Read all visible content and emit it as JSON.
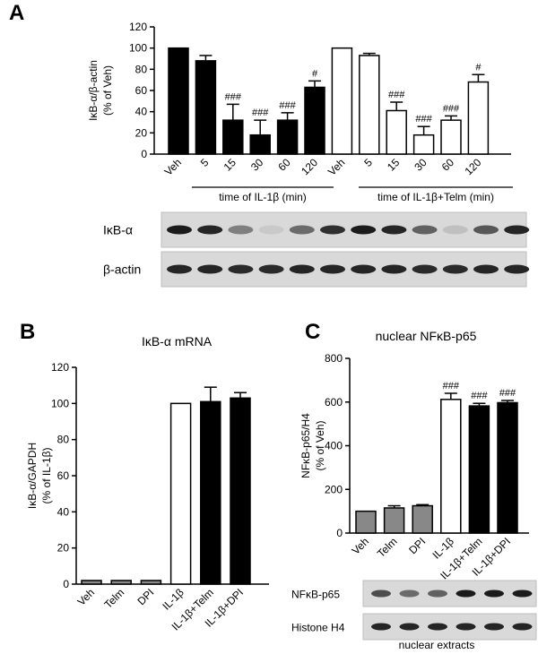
{
  "panels": {
    "a": "A",
    "b": "B",
    "c": "C"
  },
  "chart_data": [
    {
      "id": "A",
      "type": "bar",
      "ylabel_line1": "IκB-α/β-actin",
      "ylabel_line2": "(% of Veh)",
      "ylim": [
        0,
        120
      ],
      "yticks": [
        0,
        20,
        40,
        60,
        80,
        100,
        120
      ],
      "categories": [
        "Veh",
        "5",
        "15",
        "30",
        "60",
        "120",
        "Veh",
        "5",
        "15",
        "30",
        "60",
        "120"
      ],
      "values": [
        100,
        88,
        32,
        18,
        32,
        63,
        100,
        93,
        41,
        18,
        32,
        68
      ],
      "errors": [
        0,
        5,
        15,
        14,
        7,
        6,
        0,
        2,
        8,
        8,
        4,
        7
      ],
      "fills": [
        "#000000",
        "#000000",
        "#000000",
        "#000000",
        "#000000",
        "#000000",
        "#ffffff",
        "#ffffff",
        "#ffffff",
        "#ffffff",
        "#ffffff",
        "#ffffff"
      ],
      "significance": [
        "",
        "",
        "###",
        "###",
        "###",
        "#",
        "",
        "",
        "###",
        "###",
        "###",
        "#"
      ],
      "group_labels": [
        "time of IL-1β (min)",
        "time of IL-1β+Telm (min)"
      ],
      "blot": {
        "rows": [
          "IκB-α",
          "β-actin"
        ]
      }
    },
    {
      "id": "B",
      "type": "bar",
      "title": "IκB-α mRNA",
      "ylabel_line1": "IκB-α/GAPDH",
      "ylabel_line2": "(% of IL-1β)",
      "ylim": [
        0,
        120
      ],
      "yticks": [
        0,
        20,
        40,
        60,
        80,
        100,
        120
      ],
      "categories": [
        "Veh",
        "Telm",
        "DPI",
        "IL-1β",
        "IL-1β+Telm",
        "IL-1β+DPI"
      ],
      "values": [
        2,
        2,
        2,
        100,
        101,
        103
      ],
      "errors": [
        0,
        0,
        0,
        0,
        8,
        3
      ],
      "fills": [
        "#888888",
        "#888888",
        "#888888",
        "#ffffff",
        "#000000",
        "#000000"
      ]
    },
    {
      "id": "C",
      "type": "bar",
      "title": "nuclear NFκB-p65",
      "ylabel_line1": "NFκB-p65/H4",
      "ylabel_line2": "(% of Veh)",
      "ylim": [
        0,
        800
      ],
      "yticks": [
        0,
        200,
        400,
        600,
        800
      ],
      "categories": [
        "Veh",
        "Telm",
        "DPI",
        "IL-1β",
        "IL-1β+Telm",
        "IL-1β+DPI"
      ],
      "values": [
        100,
        115,
        125,
        612,
        582,
        597
      ],
      "errors": [
        0,
        10,
        5,
        28,
        12,
        10
      ],
      "fills": [
        "#888888",
        "#888888",
        "#888888",
        "#ffffff",
        "#000000",
        "#000000"
      ],
      "significance": [
        "",
        "",
        "",
        "###",
        "###",
        "###"
      ],
      "blot": {
        "rows": [
          "NFκB-p65",
          "Histone H4"
        ],
        "caption": "nuclear extracts"
      }
    }
  ]
}
